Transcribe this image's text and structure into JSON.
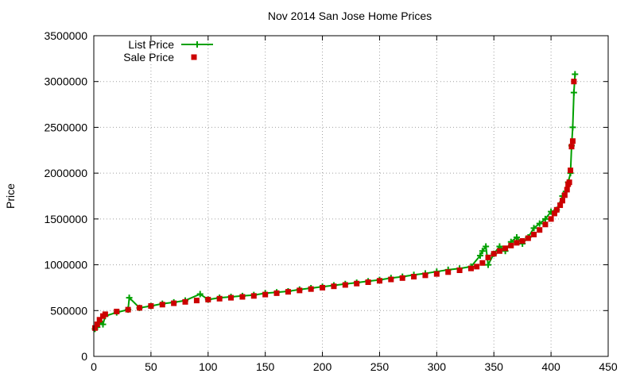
{
  "chart_data": {
    "type": "line",
    "title": "Nov 2014 San Jose Home Prices",
    "xlabel": "",
    "ylabel": "Price",
    "xlim": [
      0,
      450
    ],
    "ylim": [
      0,
      3500000
    ],
    "xticks": [
      0,
      50,
      100,
      150,
      200,
      250,
      300,
      350,
      400,
      450
    ],
    "yticks": [
      0,
      500000,
      1000000,
      1500000,
      2000000,
      2500000,
      3000000,
      3500000
    ],
    "grid": true,
    "legend": "top-left",
    "series": [
      {
        "name": "List Price",
        "kind": "line+cross",
        "color": "#00a000",
        "x": [
          1,
          3,
          6,
          8,
          10,
          20,
          30,
          31,
          40,
          50,
          60,
          70,
          80,
          93,
          100,
          110,
          120,
          130,
          140,
          150,
          160,
          170,
          180,
          190,
          200,
          210,
          220,
          230,
          240,
          250,
          260,
          270,
          280,
          290,
          300,
          310,
          320,
          330,
          338,
          340,
          343,
          345,
          350,
          355,
          360,
          365,
          370,
          375,
          380,
          385,
          390,
          395,
          400,
          405,
          410,
          413,
          415,
          417,
          418,
          419,
          420,
          421
        ],
        "y": [
          300000,
          320000,
          380000,
          350000,
          440000,
          480000,
          510000,
          640000,
          530000,
          550000,
          575000,
          590000,
          610000,
          680000,
          620000,
          640000,
          650000,
          660000,
          670000,
          690000,
          700000,
          710000,
          730000,
          745000,
          760000,
          775000,
          790000,
          805000,
          820000,
          835000,
          855000,
          870000,
          890000,
          905000,
          925000,
          945000,
          960000,
          980000,
          1100000,
          1150000,
          1200000,
          1000000,
          1120000,
          1200000,
          1150000,
          1250000,
          1300000,
          1230000,
          1300000,
          1400000,
          1450000,
          1500000,
          1580000,
          1600000,
          1750000,
          1800000,
          1900000,
          2000000,
          2300000,
          2500000,
          2880000,
          3080000
        ]
      },
      {
        "name": "Sale Price",
        "kind": "square",
        "color": "#cc0000",
        "x": [
          1,
          3,
          5,
          8,
          10,
          20,
          30,
          40,
          50,
          60,
          70,
          80,
          90,
          100,
          110,
          120,
          130,
          140,
          150,
          160,
          170,
          180,
          190,
          200,
          210,
          220,
          230,
          240,
          250,
          260,
          270,
          280,
          290,
          300,
          310,
          320,
          330,
          335,
          340,
          345,
          350,
          355,
          360,
          365,
          370,
          375,
          380,
          385,
          390,
          395,
          400,
          403,
          405,
          408,
          410,
          412,
          414,
          415,
          416,
          417,
          418,
          419,
          420
        ],
        "y": [
          310000,
          350000,
          400000,
          440000,
          460000,
          490000,
          510000,
          530000,
          550000,
          565000,
          580000,
          595000,
          610000,
          620000,
          630000,
          640000,
          650000,
          660000,
          675000,
          690000,
          705000,
          720000,
          735000,
          750000,
          765000,
          780000,
          795000,
          810000,
          825000,
          840000,
          855000,
          870000,
          885000,
          900000,
          920000,
          940000,
          960000,
          980000,
          1020000,
          1080000,
          1120000,
          1150000,
          1180000,
          1210000,
          1240000,
          1260000,
          1290000,
          1330000,
          1380000,
          1440000,
          1500000,
          1560000,
          1600000,
          1650000,
          1700000,
          1760000,
          1820000,
          1880000,
          1900000,
          2030000,
          2290000,
          2350000,
          3000000
        ]
      }
    ]
  }
}
